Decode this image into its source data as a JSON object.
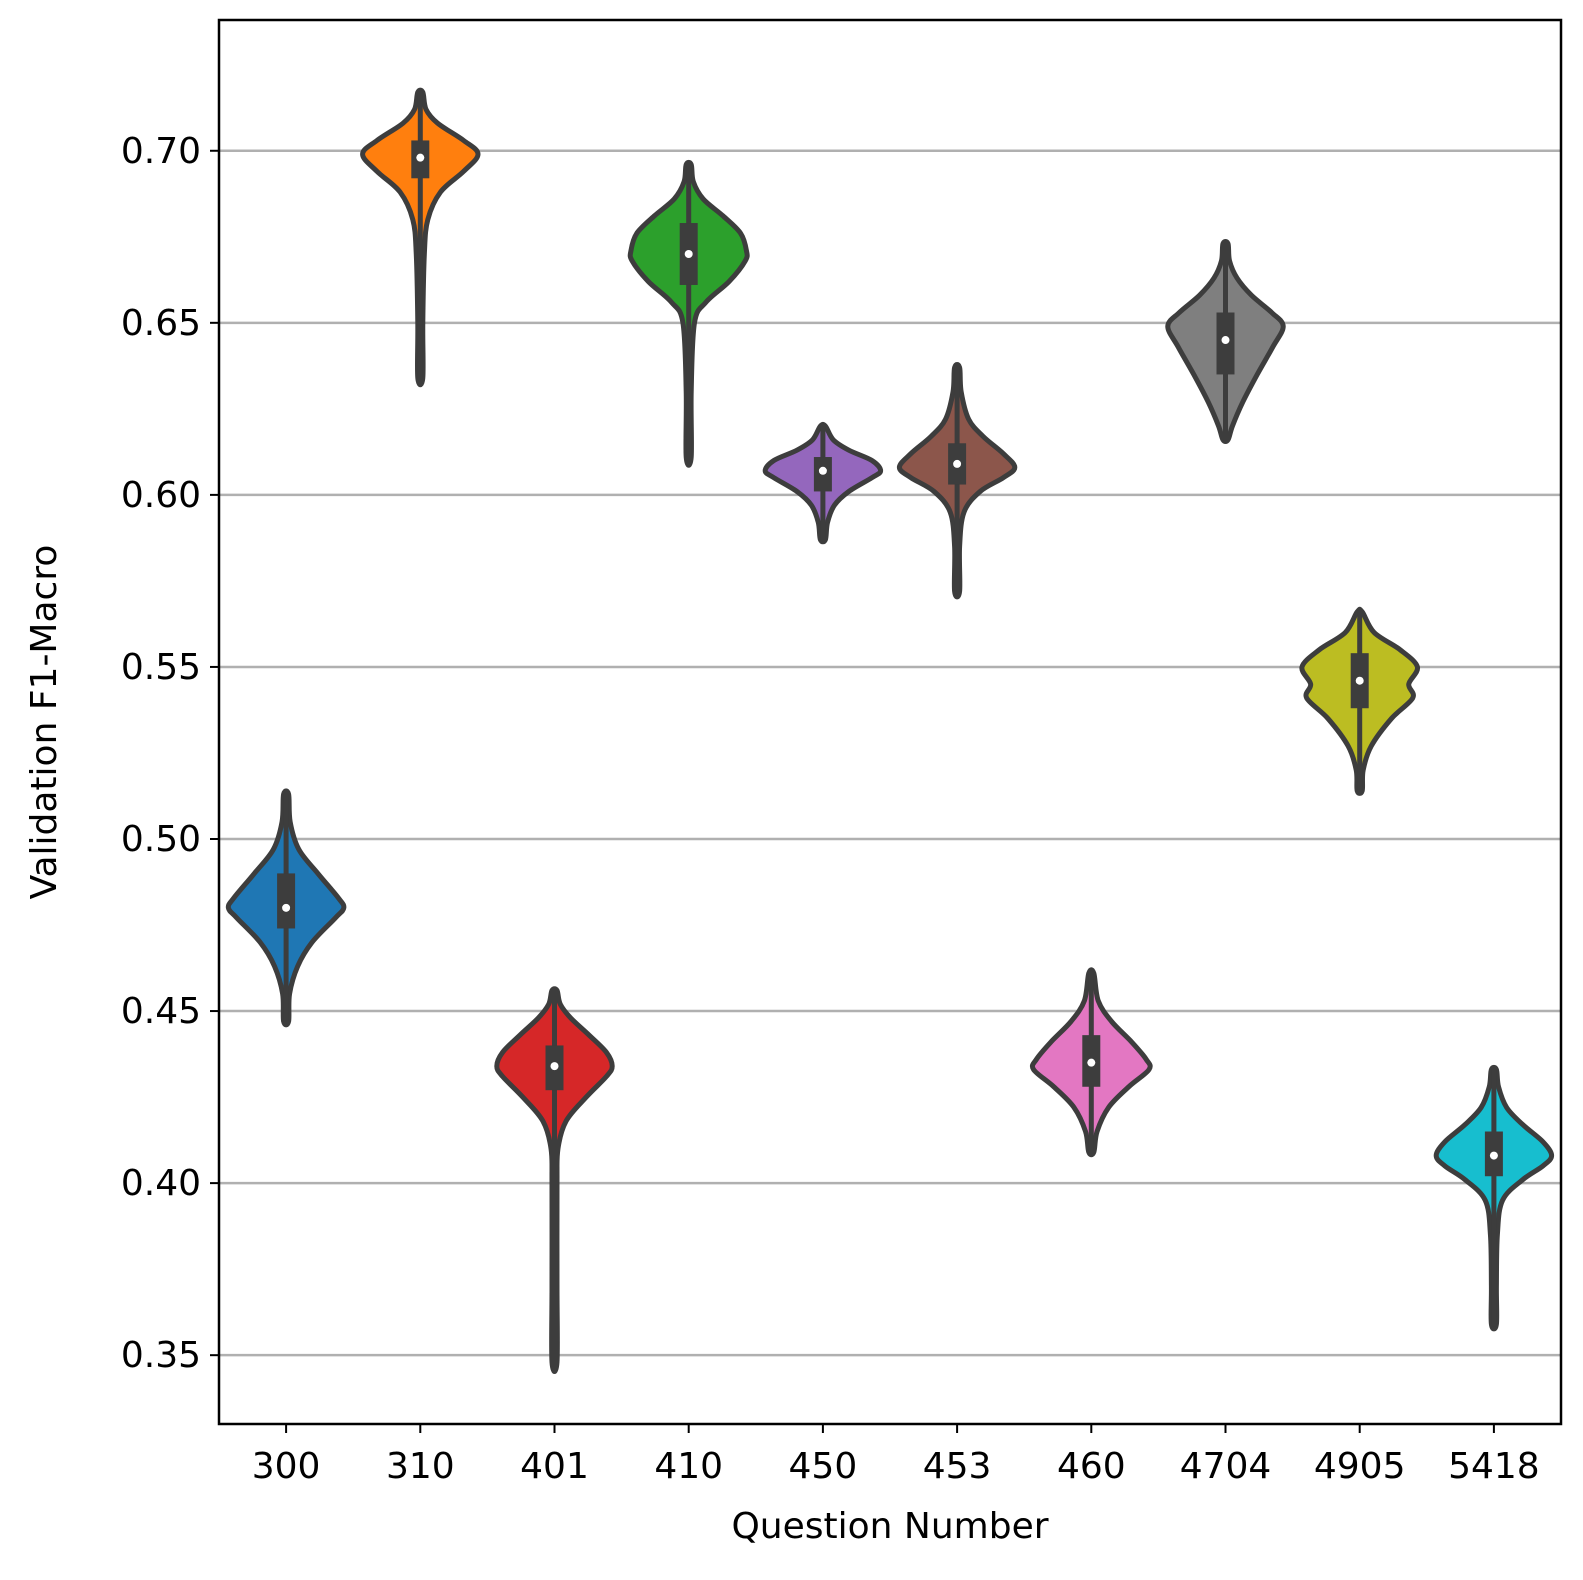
{
  "chart_data": {
    "type": "violin",
    "xlabel": "Question Number",
    "ylabel": "Validation F1-Macro",
    "ylim": [
      0.33,
      0.738
    ],
    "yticks": [
      0.35,
      0.4,
      0.45,
      0.5,
      0.55,
      0.6,
      0.65,
      0.7
    ],
    "ytick_labels": [
      "0.35",
      "0.40",
      "0.45",
      "0.50",
      "0.55",
      "0.60",
      "0.65",
      "0.70"
    ],
    "grid": "horizontal",
    "legend": "none",
    "categories": [
      "300",
      "310",
      "401",
      "410",
      "450",
      "453",
      "460",
      "4704",
      "4905",
      "5418"
    ],
    "series": [
      {
        "color": "#1f77b4",
        "min": 0.447,
        "max": 0.513,
        "q1": 0.474,
        "median": 0.48,
        "q3": 0.49,
        "profile": [
          [
            0.447,
            0.0
          ],
          [
            0.455,
            0.06
          ],
          [
            0.463,
            0.2
          ],
          [
            0.47,
            0.45
          ],
          [
            0.477,
            0.85
          ],
          [
            0.48,
            1.0
          ],
          [
            0.483,
            0.9
          ],
          [
            0.49,
            0.55
          ],
          [
            0.497,
            0.22
          ],
          [
            0.505,
            0.07
          ],
          [
            0.513,
            0.0
          ]
        ]
      },
      {
        "color": "#ff7f0e",
        "min": 0.634,
        "max": 0.717,
        "q1": 0.692,
        "median": 0.698,
        "q3": 0.703,
        "profile": [
          [
            0.634,
            0.0
          ],
          [
            0.65,
            0.04
          ],
          [
            0.67,
            0.07
          ],
          [
            0.68,
            0.13
          ],
          [
            0.688,
            0.35
          ],
          [
            0.694,
            0.75
          ],
          [
            0.699,
            1.0
          ],
          [
            0.703,
            0.75
          ],
          [
            0.708,
            0.3
          ],
          [
            0.712,
            0.1
          ],
          [
            0.717,
            0.0
          ]
        ]
      },
      {
        "color": "#d62728",
        "min": 0.348,
        "max": 0.456,
        "q1": 0.427,
        "median": 0.434,
        "q3": 0.44,
        "profile": [
          [
            0.348,
            0.0
          ],
          [
            0.37,
            0.02
          ],
          [
            0.4,
            0.03
          ],
          [
            0.41,
            0.06
          ],
          [
            0.418,
            0.2
          ],
          [
            0.425,
            0.55
          ],
          [
            0.431,
            0.9
          ],
          [
            0.434,
            1.0
          ],
          [
            0.438,
            0.9
          ],
          [
            0.443,
            0.6
          ],
          [
            0.448,
            0.28
          ],
          [
            0.452,
            0.1
          ],
          [
            0.456,
            0.0
          ]
        ]
      },
      {
        "color": "#2ca02c",
        "min": 0.611,
        "max": 0.696,
        "q1": 0.661,
        "median": 0.67,
        "q3": 0.679,
        "profile": [
          [
            0.611,
            0.0
          ],
          [
            0.63,
            0.04
          ],
          [
            0.65,
            0.1
          ],
          [
            0.656,
            0.3
          ],
          [
            0.662,
            0.7
          ],
          [
            0.668,
            0.98
          ],
          [
            0.671,
            1.0
          ],
          [
            0.676,
            0.9
          ],
          [
            0.681,
            0.6
          ],
          [
            0.686,
            0.25
          ],
          [
            0.691,
            0.08
          ],
          [
            0.696,
            0.0
          ]
        ]
      },
      {
        "color": "#9467bd",
        "min": 0.587,
        "max": 0.62,
        "q1": 0.601,
        "median": 0.607,
        "q3": 0.611,
        "profile": [
          [
            0.587,
            0.0
          ],
          [
            0.592,
            0.08
          ],
          [
            0.597,
            0.2
          ],
          [
            0.601,
            0.45
          ],
          [
            0.605,
            0.85
          ],
          [
            0.607,
            1.0
          ],
          [
            0.61,
            0.85
          ],
          [
            0.613,
            0.45
          ],
          [
            0.616,
            0.18
          ],
          [
            0.62,
            0.0
          ]
        ]
      },
      {
        "color": "#8c564b",
        "min": 0.572,
        "max": 0.637,
        "q1": 0.603,
        "median": 0.609,
        "q3": 0.615,
        "profile": [
          [
            0.572,
            0.0
          ],
          [
            0.585,
            0.04
          ],
          [
            0.595,
            0.12
          ],
          [
            0.601,
            0.4
          ],
          [
            0.605,
            0.8
          ],
          [
            0.608,
            1.0
          ],
          [
            0.612,
            0.8
          ],
          [
            0.617,
            0.45
          ],
          [
            0.622,
            0.2
          ],
          [
            0.63,
            0.07
          ],
          [
            0.637,
            0.0
          ]
        ]
      },
      {
        "color": "#e377c2",
        "min": 0.409,
        "max": 0.461,
        "q1": 0.428,
        "median": 0.435,
        "q3": 0.443,
        "profile": [
          [
            0.409,
            0.0
          ],
          [
            0.415,
            0.1
          ],
          [
            0.422,
            0.3
          ],
          [
            0.428,
            0.65
          ],
          [
            0.433,
            1.0
          ],
          [
            0.436,
            0.95
          ],
          [
            0.441,
            0.7
          ],
          [
            0.447,
            0.35
          ],
          [
            0.453,
            0.12
          ],
          [
            0.461,
            0.0
          ]
        ]
      },
      {
        "color": "#7f7f7f",
        "min": 0.616,
        "max": 0.673,
        "q1": 0.635,
        "median": 0.645,
        "q3": 0.653,
        "profile": [
          [
            0.616,
            0.0
          ],
          [
            0.62,
            0.12
          ],
          [
            0.627,
            0.3
          ],
          [
            0.635,
            0.55
          ],
          [
            0.643,
            0.82
          ],
          [
            0.649,
            1.0
          ],
          [
            0.653,
            0.8
          ],
          [
            0.658,
            0.45
          ],
          [
            0.663,
            0.2
          ],
          [
            0.668,
            0.07
          ],
          [
            0.673,
            0.0
          ]
        ]
      },
      {
        "color": "#bcbd22",
        "min": 0.514,
        "max": 0.566,
        "q1": 0.538,
        "median": 0.546,
        "q3": 0.554,
        "profile": [
          [
            0.514,
            0.0
          ],
          [
            0.52,
            0.06
          ],
          [
            0.527,
            0.2
          ],
          [
            0.535,
            0.55
          ],
          [
            0.541,
            0.92
          ],
          [
            0.545,
            0.85
          ],
          [
            0.55,
            1.0
          ],
          [
            0.555,
            0.7
          ],
          [
            0.56,
            0.25
          ],
          [
            0.566,
            0.0
          ]
        ]
      },
      {
        "color": "#17becf",
        "min": 0.359,
        "max": 0.433,
        "q1": 0.402,
        "median": 0.408,
        "q3": 0.415,
        "profile": [
          [
            0.359,
            0.0
          ],
          [
            0.37,
            0.03
          ],
          [
            0.385,
            0.06
          ],
          [
            0.395,
            0.15
          ],
          [
            0.401,
            0.5
          ],
          [
            0.405,
            0.85
          ],
          [
            0.408,
            1.0
          ],
          [
            0.412,
            0.85
          ],
          [
            0.417,
            0.5
          ],
          [
            0.422,
            0.22
          ],
          [
            0.428,
            0.08
          ],
          [
            0.433,
            0.0
          ]
        ]
      }
    ]
  }
}
